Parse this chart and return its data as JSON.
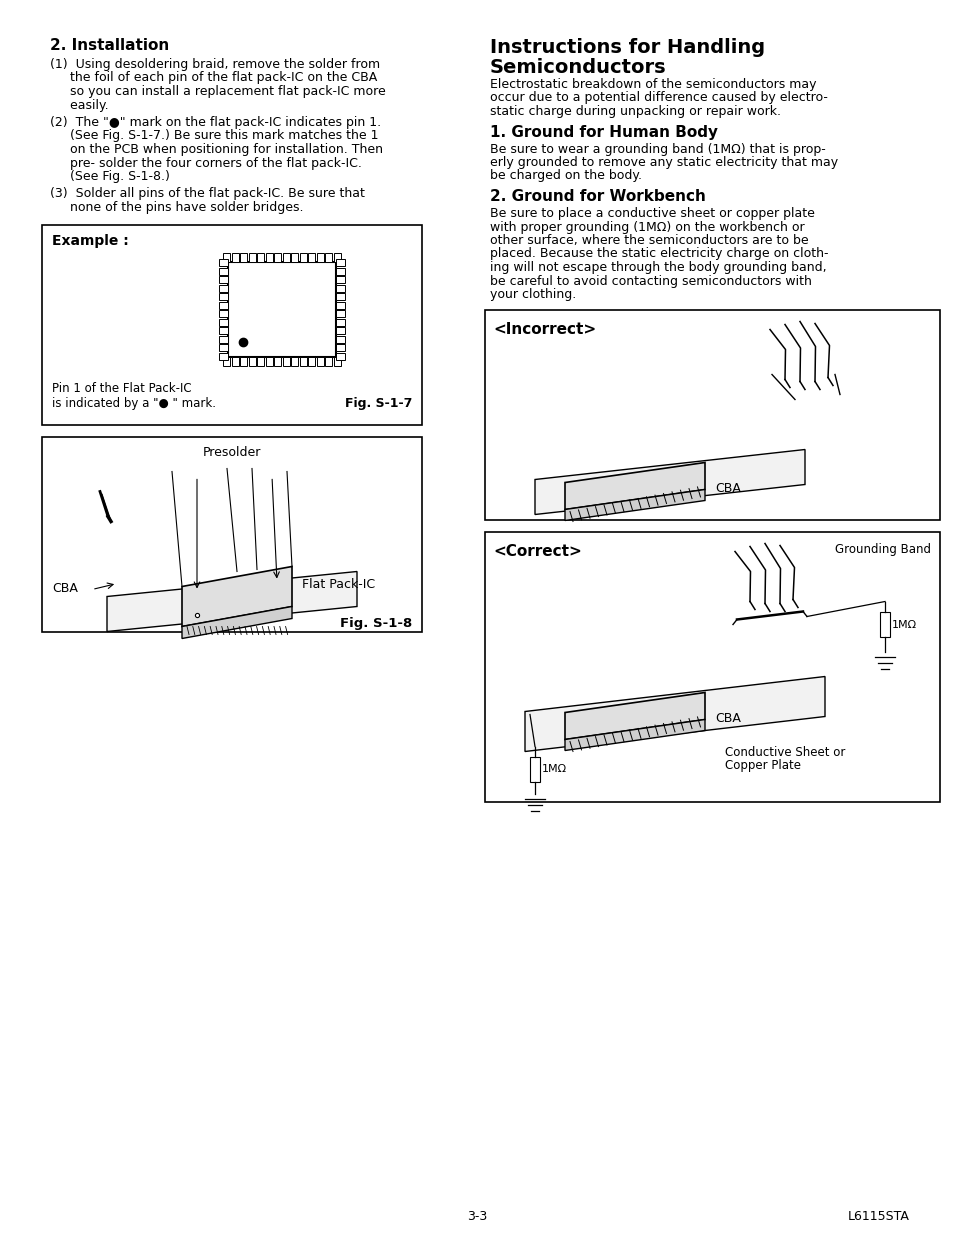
{
  "bg_color": "#ffffff",
  "footer_left": "3-3",
  "footer_right": "L6115STA",
  "left": {
    "heading": "2. Installation",
    "p1": [
      "(1)  Using desoldering braid, remove the solder from",
      "     the foil of each pin of the flat pack-IC on the CBA",
      "     so you can install a replacement flat pack-IC more",
      "     easily."
    ],
    "p2": [
      "(2)  The \"●\" mark on the flat pack-IC indicates pin 1.",
      "     (See Fig. S-1-7.) Be sure this mark matches the 1",
      "     on the PCB when positioning for installation. Then",
      "     pre- solder the four corners of the flat pack-IC.",
      "     (See Fig. S-1-8.)"
    ],
    "p3": [
      "(3)  Solder all pins of the flat pack-IC. Be sure that",
      "     none of the pins have solder bridges."
    ],
    "fig7_example": "Example :",
    "fig7_cap1": "Pin 1 of the Flat Pack-IC",
    "fig7_cap2": "is indicated by a \"● \" mark.",
    "fig7_name": "Fig. S-1-7",
    "fig8_presolder": "Presolder",
    "fig8_flatpack": "Flat Pack-IC",
    "fig8_cba": "CBA",
    "fig8_name": "Fig. S-1-8"
  },
  "right": {
    "main_h": "Instructions for Handling",
    "main_h2": "Semiconductors",
    "intro": [
      "Electrostatic breakdown of the semiconductors may",
      "occur due to a potential difference caused by electro-",
      "static charge during unpacking or repair work."
    ],
    "h1": "1. Ground for Human Body",
    "b1": [
      "Be sure to wear a grounding band (1MΩ) that is prop-",
      "erly grounded to remove any static electricity that may",
      "be charged on the body."
    ],
    "h2": "2. Ground for Workbench",
    "b2": [
      "Be sure to place a conductive sheet or copper plate",
      "with proper grounding (1MΩ) on the workbench or",
      "other surface, where the semiconductors are to be",
      "placed. Because the static electricity charge on cloth-",
      "ing will not escape through the body grounding band,",
      "be careful to avoid contacting semiconductors with",
      "your clothing."
    ],
    "incorrect": "<Incorrect>",
    "inc_cba": "CBA",
    "correct": "<Correct>",
    "cor_cba": "CBA",
    "grounding_band": "Grounding Band",
    "r1": "1MΩ",
    "r2": "1MΩ",
    "cond_sheet": "Conductive Sheet or\nCopper Plate"
  }
}
